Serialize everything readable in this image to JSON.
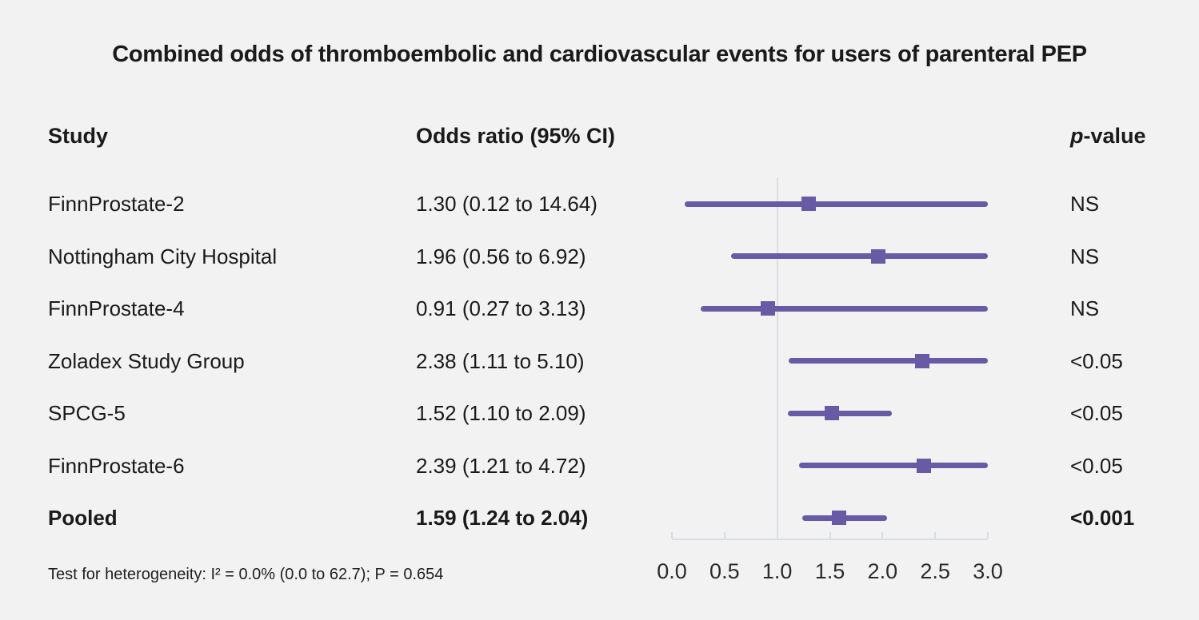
{
  "title": "Combined odds of thromboembolic and cardiovascular events for users of parenteral PEP",
  "columns": {
    "study": "Study",
    "odds_ratio": "Odds ratio (95% CI)",
    "p_italic": "p",
    "p_rest": "-value"
  },
  "chart_data": {
    "type": "forest",
    "xlabel": "Odds ratio",
    "studies": [
      {
        "name": "FinnProstate-2",
        "or": 1.3,
        "ci_low": 0.12,
        "ci_high": 14.64,
        "label": "1.30 (0.12 to 14.64)",
        "p": "NS",
        "bold": false
      },
      {
        "name": "Nottingham City Hospital",
        "or": 1.96,
        "ci_low": 0.56,
        "ci_high": 6.92,
        "label": "1.96 (0.56 to 6.92)",
        "p": "NS",
        "bold": false
      },
      {
        "name": "FinnProstate-4",
        "or": 0.91,
        "ci_low": 0.27,
        "ci_high": 3.13,
        "label": "0.91 (0.27 to 3.13)",
        "p": "NS",
        "bold": false
      },
      {
        "name": "Zoladex Study Group",
        "or": 2.38,
        "ci_low": 1.11,
        "ci_high": 5.1,
        "label": "2.38 (1.11 to 5.10)",
        "p": "<0.05",
        "bold": false
      },
      {
        "name": "SPCG-5",
        "or": 1.52,
        "ci_low": 1.1,
        "ci_high": 2.09,
        "label": "1.52 (1.10 to 2.09)",
        "p": "<0.05",
        "bold": false
      },
      {
        "name": "FinnProstate-6",
        "or": 2.39,
        "ci_low": 1.21,
        "ci_high": 4.72,
        "label": "2.39 (1.21 to 4.72)",
        "p": "<0.05",
        "bold": false
      },
      {
        "name": "Pooled",
        "or": 1.59,
        "ci_low": 1.24,
        "ci_high": 2.04,
        "label": "1.59 (1.24 to 2.04)",
        "p": "<0.001",
        "bold": true
      }
    ],
    "axis": {
      "xlim": [
        0.0,
        3.0
      ],
      "ticks": [
        0.0,
        0.5,
        1.0,
        1.5,
        2.0,
        2.5,
        3.0
      ],
      "tick_labels": [
        "0.0",
        "0.5",
        "1.0",
        "1.5",
        "2.0",
        "2.5",
        "3.0"
      ],
      "ref_line": 1.0
    },
    "colors": {
      "accent": "#685AA5",
      "grid": "#D8DDE3",
      "background": "#F2F2F2",
      "text": "#1A1A1A"
    }
  },
  "footer": "Test for heterogeneity: I² = 0.0% (0.0 to 62.7); P = 0.654"
}
